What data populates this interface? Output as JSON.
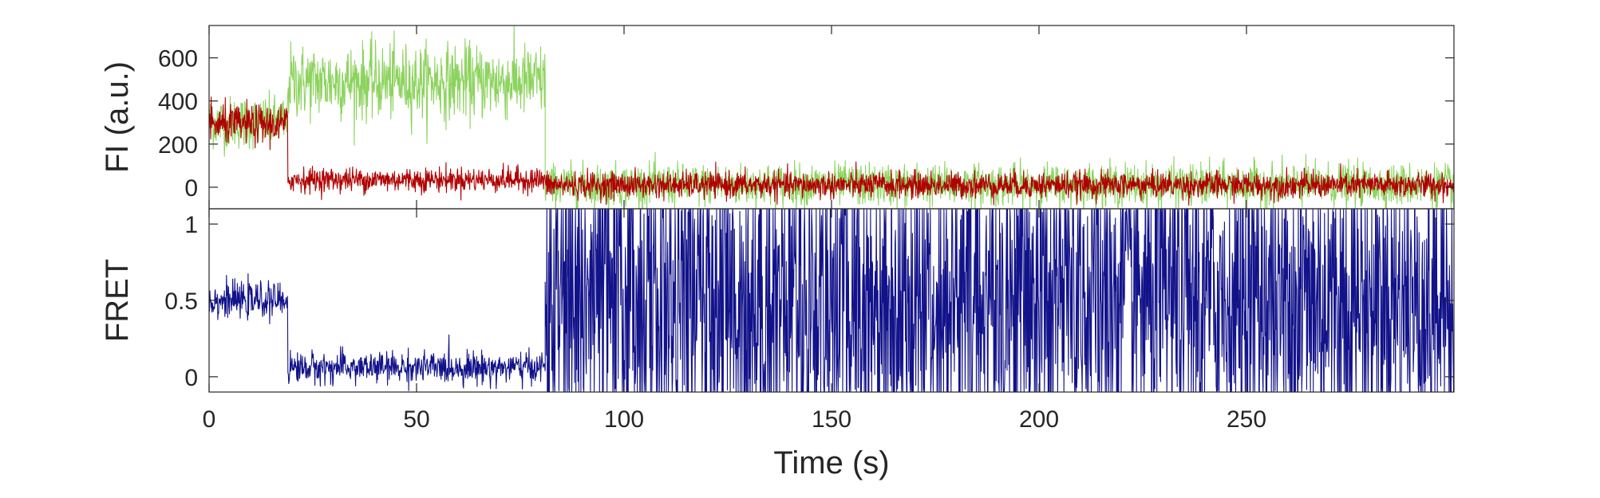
{
  "figure": {
    "xlabel": "Time (s)"
  },
  "chart_data": [
    {
      "type": "line",
      "panel": "top",
      "ylabel": "FI (a.u.)",
      "xlim": [
        0,
        300
      ],
      "ylim": [
        -100,
        750
      ],
      "xticks": [
        0,
        50,
        100,
        150,
        200,
        250
      ],
      "yticks": [
        0,
        200,
        400,
        600
      ],
      "ytick_labels": [
        "0",
        "200",
        "400",
        "600"
      ],
      "grid": false,
      "trace_step_s": 0.1,
      "series": [
        {
          "color": "#8dd35f",
          "segments": [
            {
              "start": 0,
              "end": 19,
              "mean": 300,
              "noise_sd": 60
            },
            {
              "start": 19,
              "end": 81,
              "mean": 490,
              "noise_sd": 85
            },
            {
              "start": 81,
              "end": 300,
              "mean": 10,
              "noise_sd": 48
            }
          ]
        },
        {
          "color": "#b00000",
          "segments": [
            {
              "start": 0,
              "end": 19,
              "mean": 290,
              "noise_sd": 45
            },
            {
              "start": 19,
              "end": 81,
              "mean": 35,
              "noise_sd": 28
            },
            {
              "start": 81,
              "end": 300,
              "mean": 10,
              "noise_sd": 30
            }
          ]
        }
      ]
    },
    {
      "type": "line",
      "panel": "bottom",
      "ylabel": "FRET",
      "xlim": [
        0,
        300
      ],
      "ylim": [
        -0.1,
        1.1
      ],
      "xticks": [
        0,
        50,
        100,
        150,
        200,
        250
      ],
      "xtick_labels": [
        "0",
        "50",
        "100",
        "150",
        "200",
        "250"
      ],
      "yticks": [
        0,
        0.5,
        1
      ],
      "ytick_labels": [
        "0",
        "0.5",
        "1"
      ],
      "grid": false,
      "trace_step_s": 0.1,
      "series": [
        {
          "color": "#12128a",
          "segments": [
            {
              "start": 0,
              "end": 19,
              "mean": 0.5,
              "noise_sd": 0.055
            },
            {
              "start": 19,
              "end": 81,
              "mean": 0.06,
              "noise_sd": 0.05
            },
            {
              "start": 81,
              "end": 300,
              "mean": 0.5,
              "noise_sd": 0.6,
              "clipped": true
            }
          ]
        }
      ]
    }
  ]
}
